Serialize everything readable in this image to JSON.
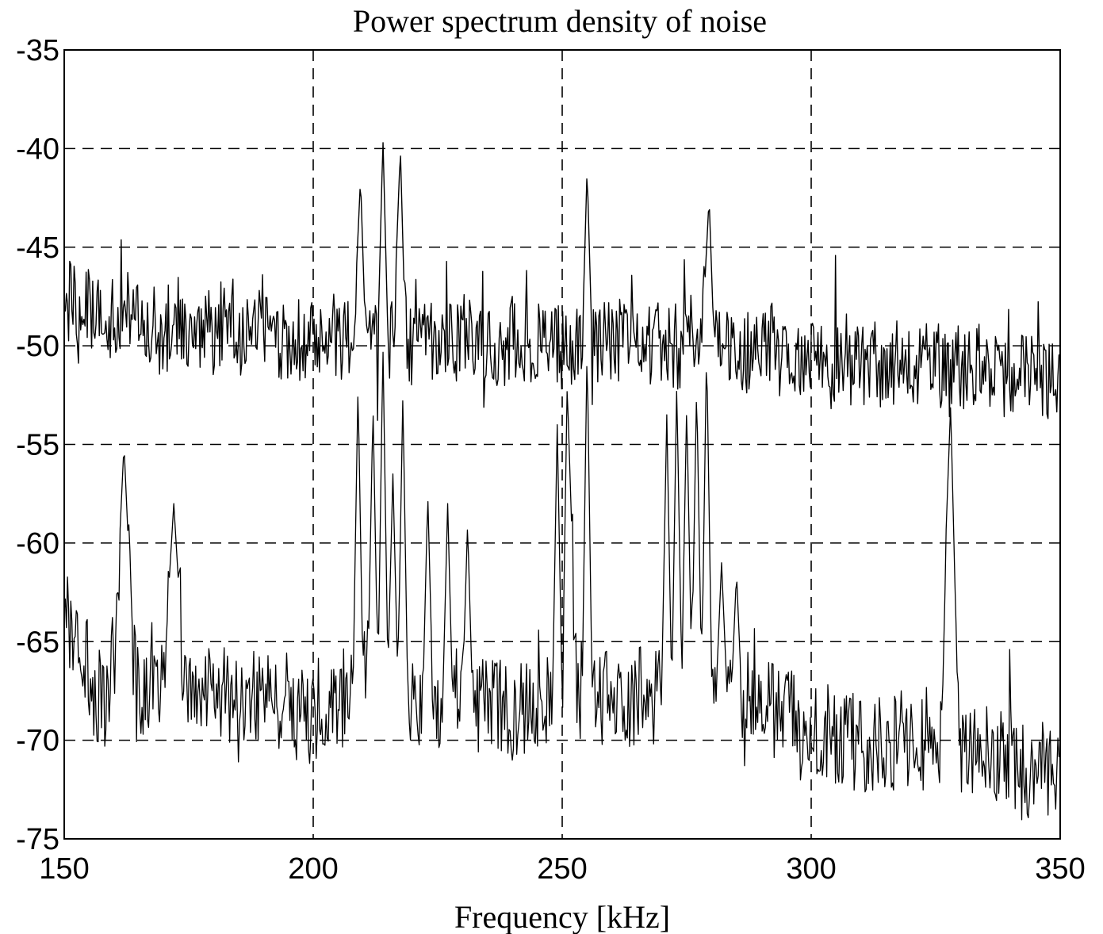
{
  "chart_data": {
    "type": "line",
    "title": "Power spectrum density of noise",
    "xlabel": "Frequency [kHz]",
    "ylabel": "",
    "xlim": [
      150,
      350
    ],
    "ylim": [
      -75,
      -35
    ],
    "xticks": [
      150,
      200,
      250,
      300,
      350
    ],
    "yticks": [
      -35,
      -40,
      -45,
      -50,
      -55,
      -60,
      -65,
      -70,
      -75
    ],
    "grid": "on (dashed)",
    "legend": "none",
    "colors": {
      "line": "#000000",
      "background": "#ffffff"
    },
    "series": [
      {
        "x": [
          150,
          152,
          154,
          156,
          158,
          160,
          162,
          164,
          166,
          168,
          170,
          172,
          174,
          176,
          178,
          180,
          182,
          184,
          186,
          188,
          190,
          192,
          194,
          196,
          198,
          200,
          202,
          204,
          206,
          208,
          209.5,
          210.5,
          211.5,
          213,
          214,
          215,
          216,
          217.5,
          218.5,
          220,
          222,
          224,
          226,
          228,
          230,
          232,
          234,
          236,
          238,
          240,
          242,
          244,
          246,
          248,
          250,
          252,
          254,
          255,
          256,
          258,
          260,
          262,
          264,
          266,
          268,
          270,
          272,
          274,
          276,
          278,
          279.5,
          280.5,
          282,
          284,
          286,
          288,
          290,
          292,
          294,
          296,
          298,
          300,
          302,
          304,
          306,
          308,
          310,
          312,
          314,
          316,
          318,
          320,
          322,
          324,
          326,
          328,
          330,
          332,
          334,
          336,
          338,
          340,
          342,
          344,
          346,
          348,
          350
        ],
        "values": [
          -48.0,
          -47.5,
          -48.5,
          -48.0,
          -49.0,
          -48.5,
          -48.0,
          -49.0,
          -48.5,
          -49.0,
          -49.5,
          -48.5,
          -49.0,
          -49.5,
          -49.0,
          -49.5,
          -48.5,
          -49.0,
          -49.5,
          -49.0,
          -49.5,
          -49.0,
          -50.0,
          -49.5,
          -50.0,
          -49.5,
          -49.5,
          -50.0,
          -49.5,
          -50.0,
          -41.5,
          -49.5,
          -50.0,
          -49.5,
          -39.5,
          -49.5,
          -50.0,
          -40.0,
          -49.5,
          -50.0,
          -49.5,
          -50.0,
          -49.5,
          -50.0,
          -49.5,
          -50.0,
          -50.0,
          -50.0,
          -50.0,
          -49.5,
          -50.0,
          -50.0,
          -49.5,
          -50.0,
          -50.0,
          -50.0,
          -50.0,
          -41.0,
          -50.0,
          -50.0,
          -50.0,
          -49.5,
          -50.0,
          -50.0,
          -50.0,
          -50.0,
          -50.0,
          -50.0,
          -49.5,
          -50.0,
          -42.5,
          -50.0,
          -50.0,
          -50.5,
          -50.0,
          -50.5,
          -50.5,
          -50.0,
          -50.5,
          -50.5,
          -50.5,
          -50.5,
          -50.5,
          -51.0,
          -50.5,
          -50.5,
          -51.0,
          -50.5,
          -51.0,
          -51.0,
          -50.5,
          -51.0,
          -51.0,
          -51.0,
          -51.0,
          -51.5,
          -51.0,
          -51.5,
          -51.0,
          -51.5,
          -51.5,
          -51.5,
          -51.5,
          -51.5,
          -51.5,
          -52.0,
          -51.5
        ]
      },
      {
        "x": [
          150,
          152,
          154,
          156,
          158,
          160,
          162,
          164,
          166,
          168,
          170,
          172,
          174,
          176,
          178,
          180,
          182,
          184,
          186,
          188,
          190,
          192,
          194,
          196,
          198,
          200,
          202,
          204,
          206,
          208,
          209,
          210,
          211,
          212,
          213,
          214,
          215,
          216,
          217,
          218,
          219,
          220,
          222,
          223,
          224,
          226,
          227,
          228,
          230,
          231,
          232,
          234,
          236,
          238,
          240,
          242,
          244,
          246,
          248,
          249,
          250,
          251,
          253,
          254,
          255,
          256,
          257,
          260,
          262,
          264,
          266,
          268,
          270,
          271,
          272,
          273,
          274,
          275,
          276,
          277,
          278,
          279,
          280,
          281,
          282,
          283,
          284,
          285,
          286,
          288,
          290,
          292,
          294,
          296,
          298,
          300,
          302,
          304,
          306,
          308,
          310,
          312,
          314,
          316,
          318,
          320,
          322,
          324,
          326,
          327,
          328,
          329,
          330,
          332,
          334,
          336,
          338,
          340,
          342,
          344,
          346,
          348,
          350
        ],
        "values": [
          -63.5,
          -64.0,
          -66.0,
          -67.5,
          -68.0,
          -66.0,
          -55.0,
          -66.5,
          -68.0,
          -67.0,
          -66.5,
          -58.0,
          -66.5,
          -67.0,
          -67.0,
          -67.5,
          -67.5,
          -68.0,
          -68.0,
          -67.5,
          -68.0,
          -68.5,
          -68.0,
          -68.5,
          -69.0,
          -68.5,
          -68.0,
          -68.5,
          -68.0,
          -67.0,
          -52.0,
          -67.0,
          -66.5,
          -53.0,
          -67.0,
          -50.0,
          -66.5,
          -56.5,
          -67.0,
          -52.5,
          -68.0,
          -68.5,
          -68.0,
          -57.5,
          -67.5,
          -68.0,
          -58.0,
          -68.0,
          -67.5,
          -59.0,
          -68.0,
          -68.0,
          -68.5,
          -68.0,
          -68.5,
          -68.0,
          -68.5,
          -68.0,
          -68.5,
          -54.0,
          -68.0,
          -52.0,
          -68.0,
          -67.5,
          -50.0,
          -67.5,
          -68.0,
          -68.0,
          -67.5,
          -68.0,
          -67.5,
          -68.0,
          -67.0,
          -53.5,
          -67.5,
          -52.0,
          -66.5,
          -53.0,
          -66.5,
          -52.0,
          -67.0,
          -50.0,
          -66.5,
          -67.0,
          -61.0,
          -67.0,
          -67.5,
          -61.5,
          -67.5,
          -68.0,
          -68.0,
          -68.5,
          -68.5,
          -69.0,
          -69.5,
          -69.0,
          -69.5,
          -69.5,
          -70.0,
          -70.0,
          -70.0,
          -70.5,
          -70.0,
          -70.5,
          -70.0,
          -70.5,
          -70.0,
          -70.5,
          -70.5,
          -60.0,
          -53.0,
          -63.5,
          -70.0,
          -70.5,
          -70.5,
          -71.0,
          -71.0,
          -71.0,
          -71.5,
          -71.5,
          -71.5,
          -72.0,
          -71.5
        ]
      }
    ]
  }
}
